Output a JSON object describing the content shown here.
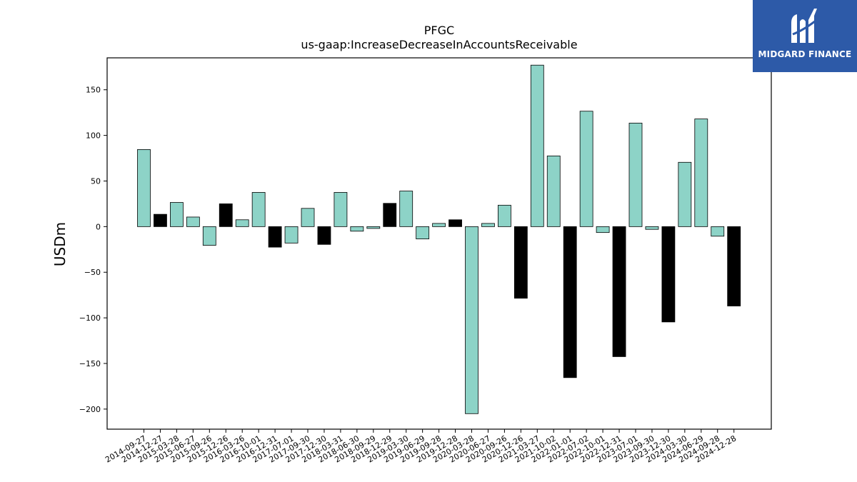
{
  "chart_data": {
    "type": "bar",
    "title": "PFGC",
    "subtitle": "us-gaap:IncreaseDecreaseInAccountsReceivable",
    "xlabel": "",
    "ylabel": "USDm",
    "ylim": [
      -222,
      185
    ],
    "yticks": [
      150,
      100,
      50,
      0,
      -50,
      -100,
      -150,
      -200
    ],
    "ytick_labels": [
      "150",
      "100",
      "50",
      "0",
      "−50",
      "−100",
      "−150",
      "−200"
    ],
    "grid": false,
    "colors": {
      "quarterly": "#8dd3c7",
      "annual": "#000000",
      "edge": "#000000"
    },
    "categories": [
      "2014-09-27",
      "2014-12-27",
      "2015-03-28",
      "2015-06-27",
      "2015-09-26",
      "2015-12-26",
      "2016-03-26",
      "2016-10-01",
      "2016-12-31",
      "2017-07-01",
      "2017-09-30",
      "2017-12-30",
      "2018-03-31",
      "2018-06-30",
      "2018-09-29",
      "2018-12-29",
      "2019-03-30",
      "2019-06-29",
      "2019-09-28",
      "2019-12-28",
      "2020-03-28",
      "2020-06-27",
      "2020-09-26",
      "2020-12-26",
      "2021-03-27",
      "2021-10-02",
      "2022-01-01",
      "2022-07-02",
      "2022-10-01",
      "2022-12-31",
      "2023-07-01",
      "2023-09-30",
      "2023-12-30",
      "2024-03-30",
      "2024-06-29",
      "2024-09-28",
      "2024-12-28"
    ],
    "values": [
      84.5,
      13.5,
      26.5,
      10.5,
      -20.5,
      25,
      7.5,
      37.5,
      -22.5,
      -18,
      20,
      -19.5,
      37.5,
      -5,
      -2,
      25.5,
      39,
      -13.5,
      3.5,
      7.5,
      -205,
      3.5,
      23.5,
      -78.5,
      177,
      77.5,
      -165.5,
      126.5,
      -6.5,
      -142.5,
      113.5,
      -3,
      -104.5,
      70.5,
      118,
      -10.5,
      -87
    ],
    "bar_color_keys": [
      "quarterly",
      "annual",
      "quarterly",
      "quarterly",
      "quarterly",
      "annual",
      "quarterly",
      "quarterly",
      "annual",
      "quarterly",
      "quarterly",
      "annual",
      "quarterly",
      "quarterly",
      "quarterly",
      "annual",
      "quarterly",
      "quarterly",
      "quarterly",
      "annual",
      "quarterly",
      "quarterly",
      "quarterly",
      "annual",
      "quarterly",
      "quarterly",
      "annual",
      "quarterly",
      "quarterly",
      "annual",
      "quarterly",
      "quarterly",
      "annual",
      "quarterly",
      "quarterly",
      "quarterly",
      "annual"
    ]
  },
  "logo": {
    "text": "MIDGARD FINANCE",
    "background": "#2d5aa8"
  }
}
